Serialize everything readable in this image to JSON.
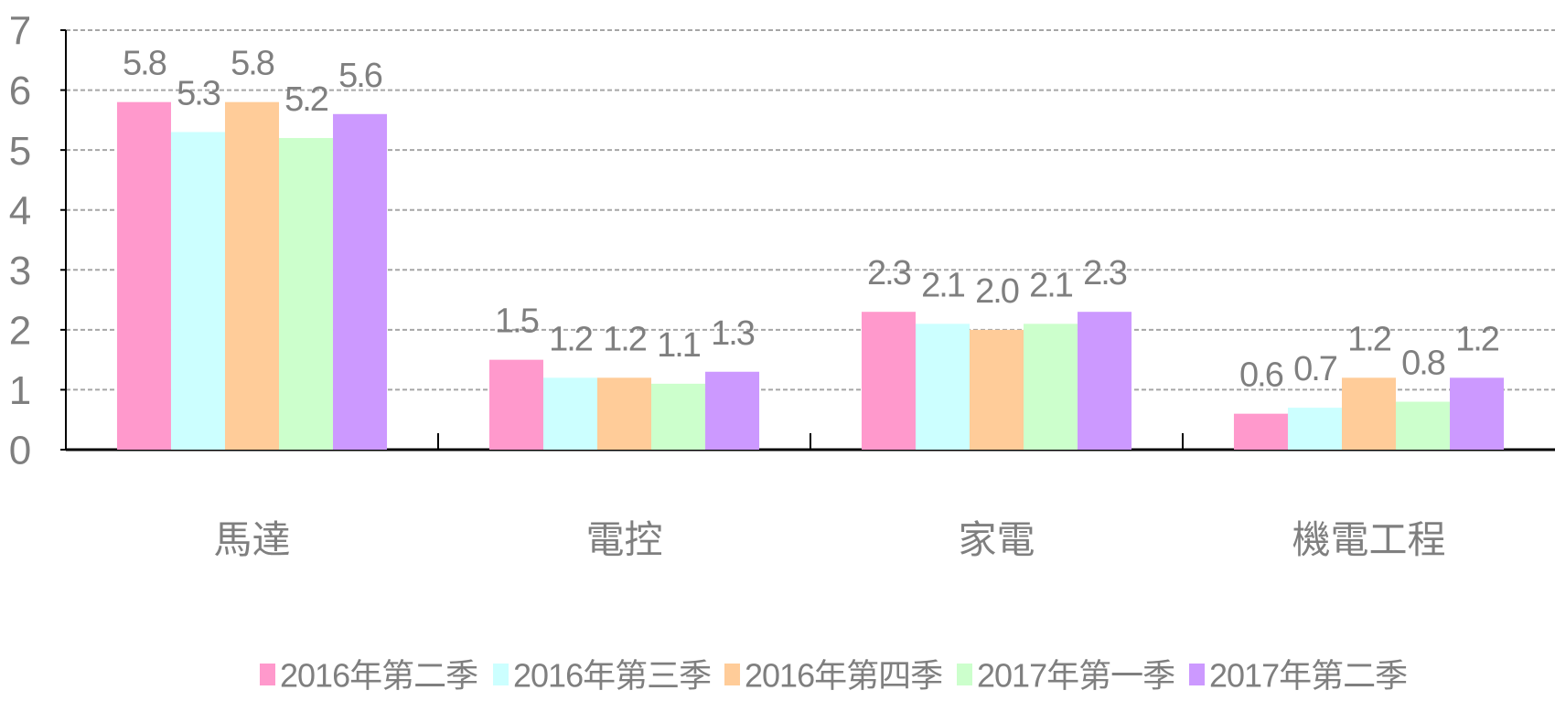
{
  "chart_data": {
    "type": "bar",
    "categories": [
      "馬達",
      "電控",
      "家電",
      "機電工程"
    ],
    "series": [
      {
        "name": "2016年第二季",
        "color": "#ff99cc",
        "values": [
          5.8,
          1.5,
          2.3,
          0.6
        ],
        "value_labels": [
          "5.8",
          "1.5",
          "2.3",
          "0.6"
        ]
      },
      {
        "name": "2016年第三季",
        "color": "#ccffff",
        "values": [
          5.3,
          1.2,
          2.1,
          0.7
        ],
        "value_labels": [
          "5.3",
          "1.2",
          "2.1",
          "0.7"
        ]
      },
      {
        "name": "2016年第四季",
        "color": "#ffcc99",
        "values": [
          5.8,
          1.2,
          2.0,
          1.2
        ],
        "value_labels": [
          "5.8",
          "1.2",
          "2.0",
          "1.2"
        ]
      },
      {
        "name": "2017年第一季",
        "color": "#ccffcc",
        "values": [
          5.2,
          1.1,
          2.1,
          0.8
        ],
        "value_labels": [
          "5.2",
          "1.1",
          "2.1",
          "0.8"
        ]
      },
      {
        "name": "2017年第二季",
        "color": "#cc99ff",
        "values": [
          5.6,
          1.3,
          2.3,
          1.2
        ],
        "value_labels": [
          "5.6",
          "1.3",
          "2.3",
          "1.2"
        ]
      }
    ],
    "ylim": [
      0,
      7
    ],
    "yticks": [
      0,
      1,
      2,
      3,
      4,
      5,
      6,
      7
    ],
    "grid": true,
    "legend": "bottom"
  }
}
